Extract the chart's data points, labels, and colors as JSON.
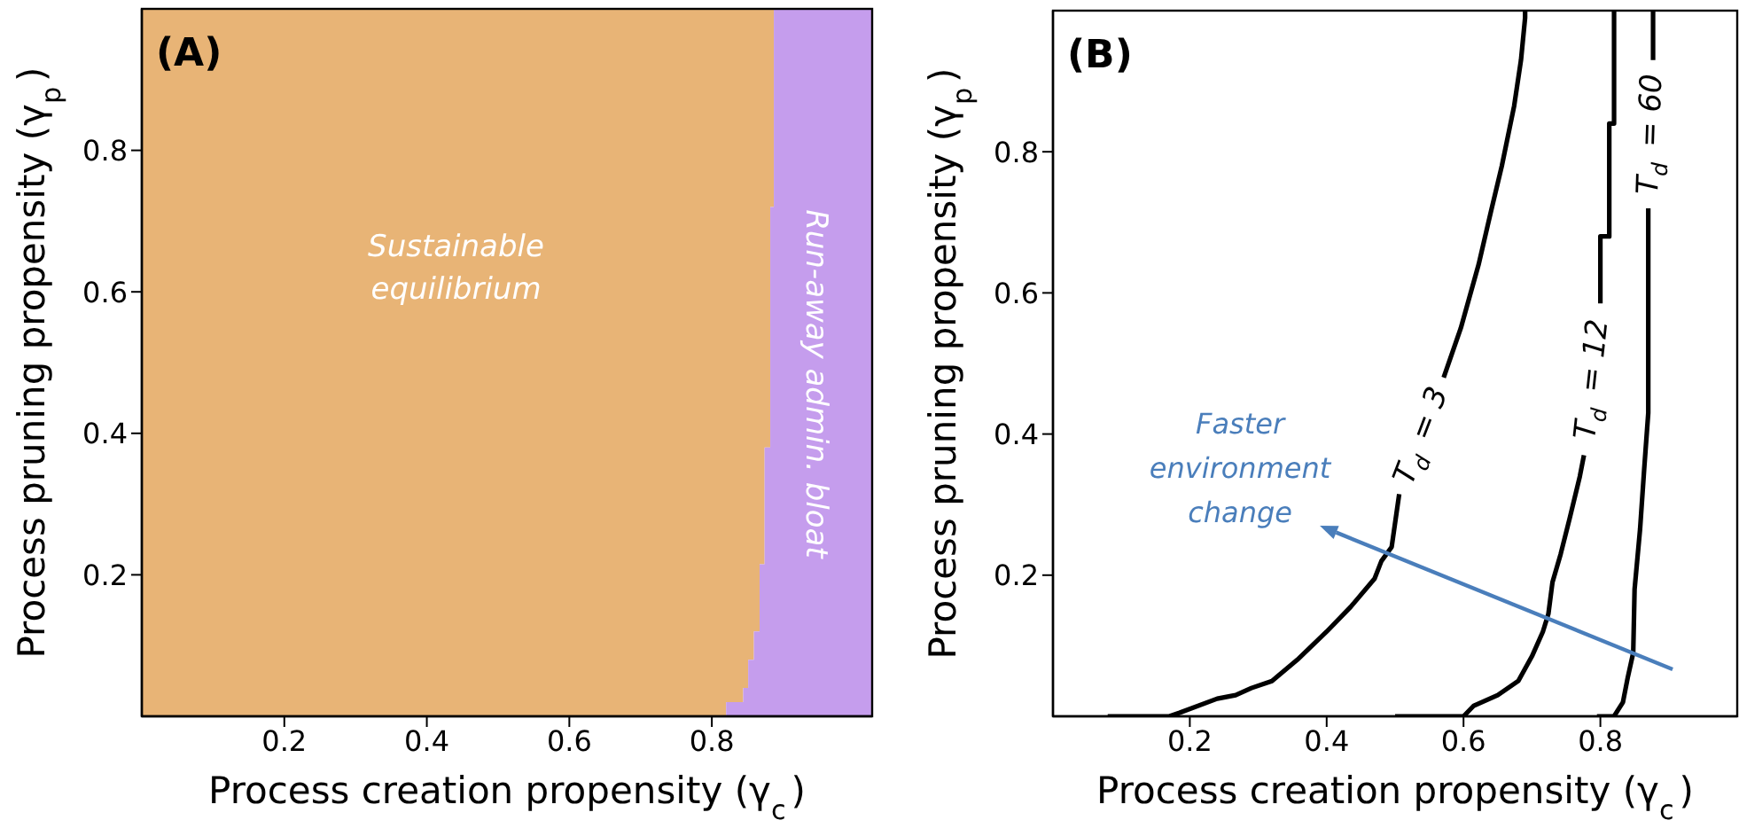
{
  "chart_data": [
    {
      "type": "area",
      "title": "(A)",
      "xlabel": "Process creation propensity (γ$_{c}$)",
      "ylabel": "Process pruning propensity (γ$_{p}$)",
      "orientation": "horizontal",
      "stacked": true,
      "x": [
        0,
        0.02,
        0.02,
        0.04,
        0.04,
        0.08,
        0.08,
        0.12,
        0.12,
        0.215,
        0.215,
        0.38,
        0.38,
        0.72,
        0.72,
        1.0
      ],
      "series": [
        {
          "name": "Sustainable equilibrium",
          "color": "#e8b476",
          "values": [
            0.82,
            0.82,
            0.844,
            0.844,
            0.851,
            0.851,
            0.859,
            0.859,
            0.867,
            0.867,
            0.874,
            0.874,
            0.882,
            0.882,
            0.887,
            0.887
          ]
        },
        {
          "name": "Run-away admin. bloat",
          "color": "#c59ded",
          "values": [
            0.205,
            0.205,
            0.181,
            0.181,
            0.174,
            0.174,
            0.166,
            0.166,
            0.158,
            0.158,
            0.151,
            0.151,
            0.143,
            0.143,
            0.138,
            0.138
          ]
        }
      ],
      "xlim": [
        0,
        1.025
      ],
      "ylim": [
        0,
        1
      ],
      "xticks": [
        0.2,
        0.4,
        0.6,
        0.8
      ],
      "yticks": [
        0.2,
        0.4,
        0.6,
        0.8
      ]
    },
    {
      "type": "line",
      "title": "(B)",
      "xlabel": "Process creation propensity (γ$_{c}$)",
      "ylabel": "Process pruning propensity (γ$_{p}$)",
      "marker": "none",
      "line_style": "solid",
      "series": [
        {
          "name": "T$_{d}$ = 3",
          "color": "#000000",
          "x": [
            0.08,
            0.17,
            0.185,
            0.24,
            0.267,
            0.29,
            0.32,
            0.357,
            0.4,
            0.435,
            0.47,
            0.48,
            0.495,
            0.506,
            0.54,
            0.571,
            0.596,
            0.622,
            0.64,
            0.656,
            0.674,
            0.684,
            0.69,
            0.69
          ],
          "values": [
            0,
            0,
            0.005,
            0.025,
            0.03,
            0.04,
            0.05,
            0.08,
            0.12,
            0.155,
            0.195,
            0.22,
            0.24,
            0.315,
            null,
            0.48,
            0.55,
            0.64,
            0.715,
            0.78,
            0.865,
            0.93,
            0.99,
            1.0
          ]
        },
        {
          "name": "T$_{d}$ = 12",
          "color": "#000000",
          "x": [
            0.5,
            0.6,
            0.615,
            0.65,
            0.68,
            0.7,
            0.716,
            0.724,
            0.73,
            0.742,
            0.755,
            0.77,
            0.776,
            0.79,
            0.8,
            0.8,
            0.813,
            0.813,
            0.82,
            0.82
          ],
          "values": [
            0,
            0,
            0.015,
            0.03,
            0.05,
            0.085,
            0.12,
            0.145,
            0.19,
            0.23,
            0.28,
            0.34,
            0.37,
            null,
            0.585,
            0.68,
            0.68,
            0.84,
            0.84,
            1.0
          ]
        },
        {
          "name": "T$_{d}$ = 60",
          "color": "#000000",
          "x": [
            0.795,
            0.82,
            0.833,
            0.84,
            0.848,
            0.85,
            0.858,
            0.864,
            0.87,
            0.87,
            0.873,
            0.877,
            0.877
          ],
          "values": [
            0,
            0,
            0.02,
            0.055,
            0.09,
            0.18,
            0.265,
            0.35,
            0.43,
            0.72,
            null,
            0.93,
            1.0
          ]
        }
      ],
      "annotations": [
        "Faster environment change"
      ],
      "xlim": [
        0,
        1
      ],
      "ylim": [
        0,
        1
      ],
      "xticks": [
        0.2,
        0.4,
        0.6,
        0.8
      ],
      "yticks": [
        0.2,
        0.4,
        0.6,
        0.8
      ]
    }
  ]
}
